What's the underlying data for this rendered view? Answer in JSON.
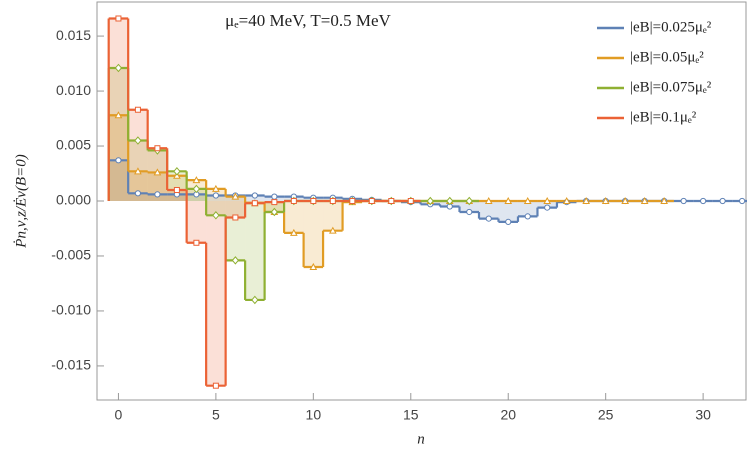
{
  "chart_data": {
    "type": "step",
    "title": "μₑ=40 MeV, T=0.5 MeV",
    "x_label": "n",
    "y_label": "Ṗn,ν,z/Ėν(B=0)",
    "x": [
      0,
      1,
      2,
      3,
      4,
      5,
      6,
      7,
      8,
      9,
      10,
      11,
      12,
      13,
      14,
      15,
      16,
      17,
      18,
      19,
      20,
      21,
      22,
      23,
      24,
      25,
      26,
      27,
      28,
      29,
      30,
      31,
      32
    ],
    "series": [
      {
        "name": "|eB|=0.025μₑ²",
        "color": "#5e81b5",
        "marker": "circle",
        "values": [
          0.0037,
          0.0007,
          0.0006,
          0.0006,
          0.0006,
          0.0005,
          0.0005,
          0.0005,
          0.0004,
          0.0004,
          0.0003,
          0.0003,
          0.0002,
          0.0001,
          0,
          -0.0001,
          -0.0003,
          -0.0005,
          -0.001,
          -0.0016,
          -0.0019,
          -0.0014,
          -0.0006,
          -0.0001,
          0,
          0,
          0,
          0,
          0,
          0,
          0,
          0,
          0
        ]
      },
      {
        "name": "|eB|=0.05μₑ²",
        "color": "#e19c24",
        "marker": "triangle",
        "values": [
          0.0078,
          0.0027,
          0.0026,
          0.0023,
          0.0019,
          0.0011,
          0.0004,
          -0.0002,
          -0.001,
          -0.0029,
          -0.006,
          -0.0027,
          -0.0001,
          0,
          0,
          0,
          0,
          0,
          0,
          0,
          0,
          0,
          0,
          0,
          0,
          0,
          0,
          0,
          0,
          null,
          null,
          null,
          null
        ]
      },
      {
        "name": "|eB|=0.075μₑ²",
        "color": "#8fb032",
        "marker": "diamond",
        "values": [
          0.0121,
          0.0055,
          0.0046,
          0.0027,
          0.0011,
          -0.0013,
          -0.0054,
          -0.009,
          -0.001,
          0,
          0,
          0,
          0,
          0,
          0,
          0,
          0,
          0,
          0,
          null,
          null,
          null,
          null,
          null,
          null,
          null,
          null,
          null,
          null,
          null,
          null,
          null,
          null
        ]
      },
      {
        "name": "|eB|=0.1μₑ²",
        "color": "#eb6235",
        "marker": "square",
        "values": [
          0.0166,
          0.0083,
          0.0048,
          0.001,
          -0.0038,
          -0.0168,
          -0.0015,
          -0.0002,
          -0.0001,
          0,
          0,
          0,
          0,
          0,
          0,
          0,
          null,
          null,
          null,
          null,
          null,
          null,
          null,
          null,
          null,
          null,
          null,
          null,
          null,
          null,
          null,
          null,
          null
        ]
      }
    ],
    "xlim": [
      -1.1,
      32.2
    ],
    "ylim": [
      -0.0181,
      0.0181
    ],
    "xticks": [
      0,
      5,
      10,
      15,
      20,
      25,
      30
    ],
    "yticks": [
      {
        "value": -0.015,
        "label": "-0.015"
      },
      {
        "value": -0.01,
        "label": "-0.010"
      },
      {
        "value": -0.005,
        "label": "-0.005"
      },
      {
        "value": 0,
        "label": "0.000"
      },
      {
        "value": 0.005,
        "label": "0.005"
      },
      {
        "value": 0.01,
        "label": "0.010"
      },
      {
        "value": 0.015,
        "label": "0.015"
      }
    ],
    "legend": "top-right",
    "fill_to_zero": true
  }
}
